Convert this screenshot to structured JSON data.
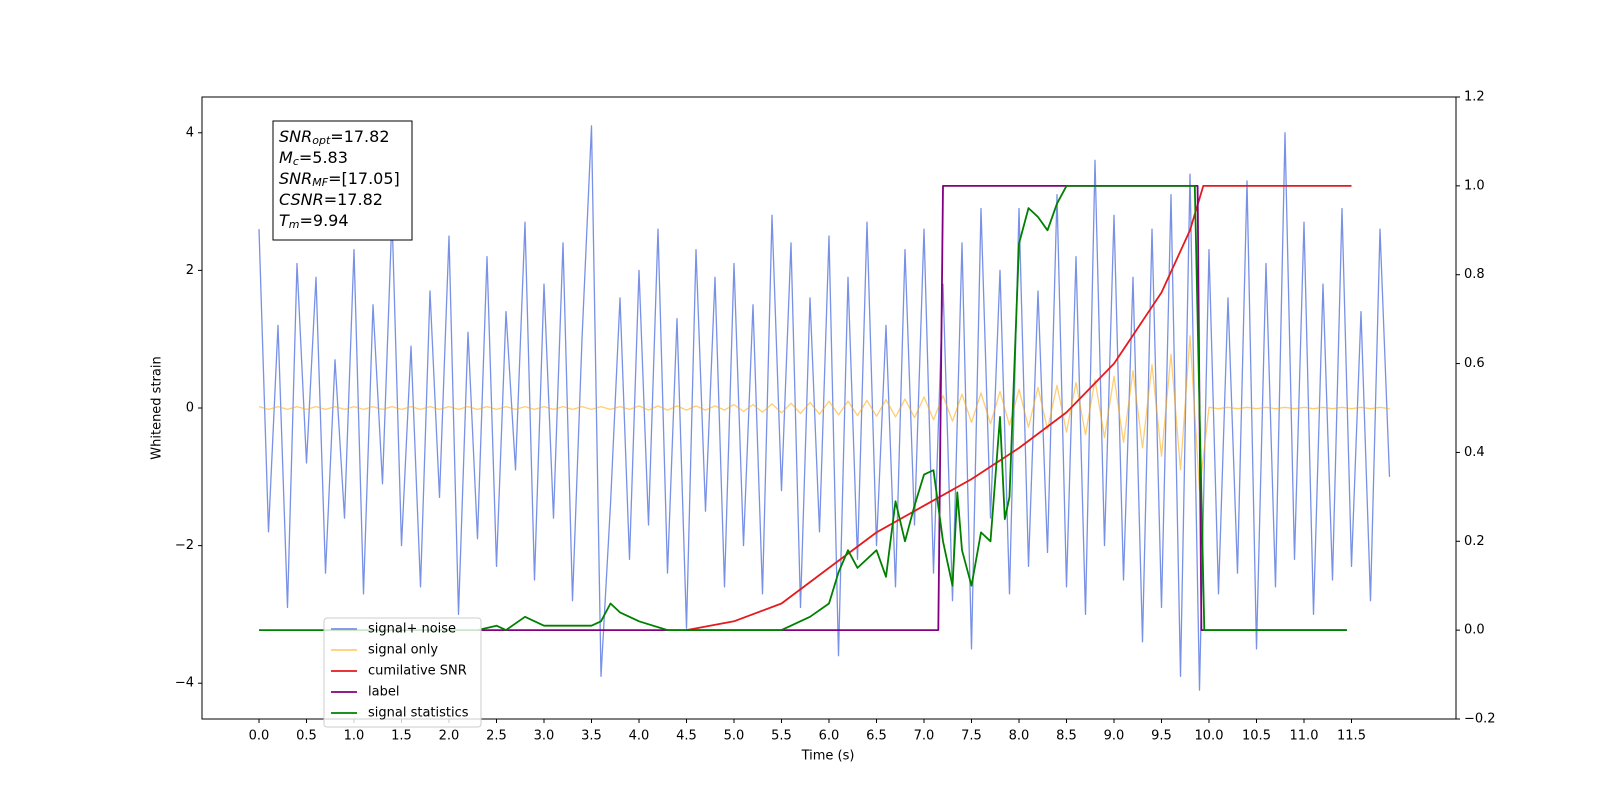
{
  "chart_data": {
    "type": "line",
    "xlabel": "Time (s)",
    "ylabel": "Whitened strain",
    "xlim": [
      -0.6,
      12.6
    ],
    "ylim": [
      -4.52,
      4.52
    ],
    "y2lim": [
      -0.2,
      1.2
    ],
    "xticks": [
      {
        "value": 0,
        "label": "0.0"
      },
      0.5,
      {
        "value": 1,
        "label": "1.0"
      },
      1.5,
      {
        "value": 2,
        "label": "2.0"
      },
      2.5,
      {
        "value": 3,
        "label": "3.0"
      },
      3.5,
      {
        "value": 4,
        "label": "4.0"
      },
      4.5,
      {
        "value": 5,
        "label": "5.0"
      },
      5.5,
      {
        "value": 6,
        "label": "6.0"
      },
      6.5,
      {
        "value": 7,
        "label": "7.0"
      },
      7.5,
      {
        "value": 8,
        "label": "8.0"
      },
      8.5,
      {
        "value": 9,
        "label": "9.0"
      },
      9.5,
      {
        "value": 10,
        "label": "10.0"
      },
      10.5,
      {
        "value": 11,
        "label": "11.0"
      },
      11.5
    ],
    "yticks": [
      {
        "value": -4,
        "label": "−4"
      },
      {
        "value": -2,
        "label": "−2"
      },
      0,
      2,
      4
    ],
    "y2ticks": [
      {
        "value": -0.2,
        "label": "−0.2"
      },
      {
        "value": 0,
        "label": "0.0"
      },
      0.2,
      0.4,
      0.6,
      0.8,
      {
        "value": 1,
        "label": "1.0"
      },
      1.2
    ],
    "annotations": [
      {
        "symbol": "SNR",
        "subscript": "opt",
        "text": "=17.82"
      },
      {
        "symbol": "M",
        "subscript": "c",
        "text": "=5.83"
      },
      {
        "symbol": "SNR",
        "subscript": "MF",
        "text": "=[17.05]"
      },
      {
        "symbol": "CSNR",
        "text": "=17.82"
      },
      {
        "symbol": "T",
        "subscript": "m",
        "text": "=9.94"
      }
    ],
    "series": [
      {
        "name": "signal+ noise",
        "color": "#7891e6",
        "axis": "y",
        "x": [
          0,
          0.1,
          0.2,
          0.3,
          0.4,
          0.5,
          0.6,
          0.7,
          0.8,
          0.9,
          1,
          1.1,
          1.2,
          1.3,
          1.4,
          1.5,
          1.6,
          1.7,
          1.8,
          1.9,
          2,
          2.1,
          2.2,
          2.3,
          2.4,
          2.5,
          2.6,
          2.7,
          2.8,
          2.9,
          3,
          3.1,
          3.2,
          3.3,
          3.4,
          3.5,
          3.6,
          3.7,
          3.8,
          3.9,
          4,
          4.1,
          4.2,
          4.3,
          4.4,
          4.5,
          4.6,
          4.7,
          4.8,
          4.9,
          5,
          5.1,
          5.2,
          5.3,
          5.4,
          5.5,
          5.6,
          5.7,
          5.8,
          5.9,
          6,
          6.1,
          6.2,
          6.3,
          6.4,
          6.5,
          6.6,
          6.7,
          6.8,
          6.9,
          7,
          7.1,
          7.2,
          7.3,
          7.4,
          7.5,
          7.6,
          7.7,
          7.8,
          7.9,
          8,
          8.1,
          8.2,
          8.3,
          8.4,
          8.5,
          8.6,
          8.7,
          8.8,
          8.9,
          9,
          9.1,
          9.2,
          9.3,
          9.4,
          9.5,
          9.6,
          9.7,
          9.8,
          9.9,
          10,
          10.1,
          10.2,
          10.3,
          10.4,
          10.5,
          10.6,
          10.7,
          10.8,
          10.9,
          11,
          11.1,
          11.2,
          11.3,
          11.4,
          11.5,
          11.6,
          11.7,
          11.8,
          11.9
        ],
        "values": [
          2.6,
          -1.8,
          1.2,
          -2.9,
          2.1,
          -0.8,
          1.9,
          -2.4,
          0.7,
          -1.6,
          2.3,
          -2.7,
          1.5,
          -1.1,
          2.8,
          -2.0,
          0.9,
          -2.6,
          1.7,
          -1.3,
          2.5,
          -3.0,
          1.1,
          -1.9,
          2.2,
          -2.3,
          1.4,
          -0.9,
          2.7,
          -2.5,
          1.8,
          -1.6,
          2.4,
          -2.8,
          1.0,
          4.1,
          -3.9,
          -1.4,
          1.6,
          -2.2,
          2.0,
          -1.7,
          2.6,
          -2.4,
          1.3,
          -3.2,
          2.3,
          -1.5,
          1.9,
          -2.6,
          2.1,
          -2.0,
          1.5,
          -2.7,
          2.8,
          -1.2,
          2.4,
          -2.9,
          1.6,
          -1.8,
          2.5,
          -3.6,
          1.9,
          -2.2,
          2.7,
          -2.0,
          1.2,
          -2.6,
          2.3,
          -1.7,
          2.6,
          -2.4,
          1.8,
          -2.8,
          2.4,
          -3.5,
          2.9,
          -1.6,
          2.0,
          -2.7,
          2.9,
          -2.3,
          1.7,
          -2.1,
          3.1,
          -2.6,
          2.2,
          -3.0,
          3.6,
          -2.0,
          2.8,
          -2.5,
          1.9,
          -3.4,
          2.6,
          -2.9,
          3.1,
          -3.9,
          3.4,
          -4.1,
          2.3,
          -2.7,
          1.6,
          -2.4,
          3.3,
          -3.5,
          2.1,
          -2.6,
          4.0,
          -2.2,
          2.7,
          -3.0,
          1.8,
          -2.5,
          2.9,
          -2.3,
          1.4,
          -2.8,
          2.6,
          -1.0
        ]
      },
      {
        "name": "signal only",
        "color": "#ffa500",
        "axis": "y",
        "x": [
          0,
          0.1,
          0.2,
          0.3,
          0.4,
          0.5,
          0.6,
          0.7,
          0.8,
          0.9,
          1,
          1.1,
          1.2,
          1.3,
          1.4,
          1.5,
          1.6,
          1.7,
          1.8,
          1.9,
          2,
          2.1,
          2.2,
          2.3,
          2.4,
          2.5,
          2.6,
          2.7,
          2.8,
          2.9,
          3,
          3.1,
          3.2,
          3.3,
          3.4,
          3.5,
          3.6,
          3.7,
          3.8,
          3.9,
          4,
          4.1,
          4.2,
          4.3,
          4.4,
          4.5,
          4.6,
          4.7,
          4.8,
          4.9,
          5,
          5.1,
          5.2,
          5.3,
          5.4,
          5.5,
          5.6,
          5.7,
          5.8,
          5.9,
          6,
          6.1,
          6.2,
          6.3,
          6.4,
          6.5,
          6.6,
          6.7,
          6.8,
          6.9,
          7,
          7.1,
          7.2,
          7.3,
          7.4,
          7.5,
          7.6,
          7.7,
          7.8,
          7.9,
          8,
          8.1,
          8.2,
          8.3,
          8.4,
          8.5,
          8.6,
          8.7,
          8.8,
          8.9,
          9,
          9.1,
          9.2,
          9.3,
          9.4,
          9.5,
          9.6,
          9.7,
          9.8,
          9.9,
          10,
          10.1,
          10.2,
          10.3,
          10.4,
          10.5,
          10.6,
          10.7,
          10.8,
          10.9,
          11,
          11.1,
          11.2,
          11.3,
          11.4,
          11.5,
          11.6,
          11.7,
          11.8,
          11.9
        ],
        "values": [
          0.02,
          -0.02,
          0.02,
          -0.02,
          0.02,
          -0.02,
          0.02,
          -0.02,
          0.02,
          -0.02,
          0.02,
          -0.02,
          0.02,
          -0.02,
          0.02,
          -0.02,
          0.02,
          -0.02,
          0.02,
          -0.02,
          0.02,
          -0.02,
          0.02,
          -0.02,
          0.02,
          -0.02,
          0.02,
          -0.02,
          0.02,
          -0.02,
          0.02,
          -0.02,
          0.02,
          -0.02,
          0.02,
          -0.02,
          0.02,
          -0.02,
          0.02,
          -0.02,
          0.03,
          -0.03,
          0.03,
          -0.03,
          0.03,
          -0.03,
          0.03,
          -0.03,
          0.03,
          -0.03,
          0.05,
          -0.05,
          0.05,
          -0.06,
          0.06,
          -0.07,
          0.07,
          -0.08,
          0.08,
          -0.09,
          0.1,
          -0.1,
          0.1,
          -0.11,
          0.11,
          -0.12,
          0.12,
          -0.13,
          0.13,
          -0.14,
          0.16,
          -0.17,
          0.18,
          -0.19,
          0.2,
          -0.21,
          0.22,
          -0.23,
          0.24,
          -0.25,
          0.27,
          -0.28,
          0.3,
          -0.31,
          0.33,
          -0.35,
          0.37,
          -0.39,
          0.41,
          -0.43,
          0.46,
          -0.5,
          0.54,
          -0.58,
          0.63,
          -0.7,
          0.78,
          -0.9,
          1.05,
          -1.2,
          0.01,
          -0.01,
          0.01,
          -0.01,
          0.01,
          -0.01,
          0.01,
          -0.01,
          0.01,
          -0.01,
          0.01,
          -0.01,
          0.01,
          -0.01,
          0.01,
          -0.01,
          0.01,
          -0.01,
          0.01,
          -0.01
        ]
      },
      {
        "name": "cumilative SNR",
        "color": "#e41a1c",
        "axis": "y2",
        "x": [
          4.5,
          5,
          5.5,
          6,
          6.5,
          7,
          7.5,
          8,
          8.5,
          9,
          9.5,
          9.8,
          9.94,
          11.5
        ],
        "values": [
          0,
          0.02,
          0.06,
          0.14,
          0.22,
          0.28,
          0.34,
          0.41,
          0.49,
          0.6,
          0.76,
          0.9,
          1,
          1
        ]
      },
      {
        "name": "label",
        "color": "#800080",
        "axis": "y2",
        "x": [
          2.3,
          7.15,
          7.2,
          9.88,
          9.92,
          11.45
        ],
        "values": [
          0,
          0,
          1,
          1,
          0,
          0
        ]
      },
      {
        "name": "signal statistics",
        "color": "#008000",
        "axis": "y2",
        "x": [
          0,
          2.3,
          2.5,
          2.6,
          2.8,
          3.0,
          3.3,
          3.5,
          3.6,
          3.7,
          3.8,
          4.0,
          4.3,
          4.5,
          5.0,
          5.5,
          5.8,
          6.0,
          6.1,
          6.2,
          6.3,
          6.5,
          6.6,
          6.7,
          6.8,
          6.9,
          7.0,
          7.1,
          7.2,
          7.3,
          7.35,
          7.4,
          7.5,
          7.6,
          7.7,
          7.8,
          7.85,
          7.9,
          8.0,
          8.1,
          8.2,
          8.3,
          8.4,
          8.5,
          8.6,
          9.0,
          9.85,
          9.9,
          9.95,
          11.45
        ],
        "values": [
          0,
          0,
          0.01,
          0,
          0.03,
          0.01,
          0.01,
          0.01,
          0.02,
          0.06,
          0.04,
          0.02,
          0,
          0,
          0,
          0,
          0.03,
          0.06,
          0.13,
          0.18,
          0.14,
          0.18,
          0.12,
          0.29,
          0.2,
          0.28,
          0.35,
          0.36,
          0.2,
          0.1,
          0.31,
          0.18,
          0.1,
          0.22,
          0.2,
          0.48,
          0.25,
          0.3,
          0.87,
          0.95,
          0.93,
          0.9,
          0.96,
          1,
          1,
          1,
          1,
          0.5,
          0,
          0
        ]
      }
    ]
  }
}
